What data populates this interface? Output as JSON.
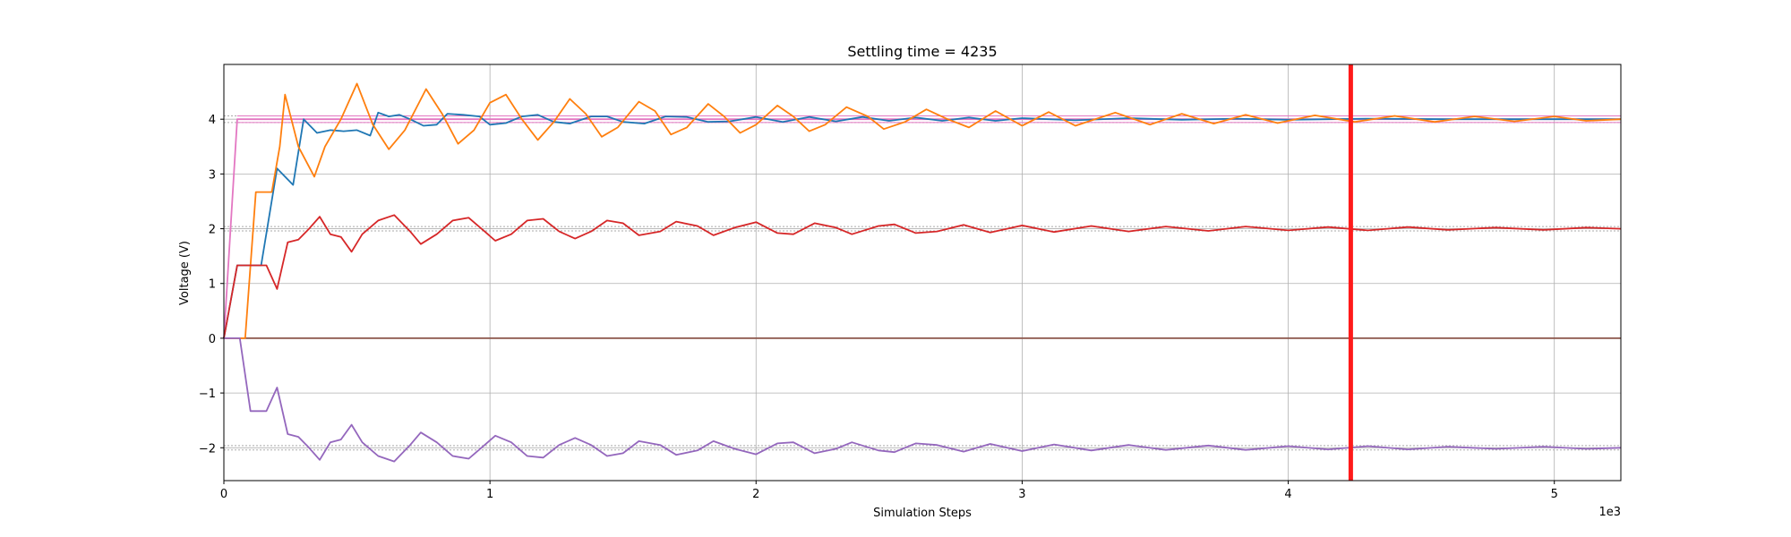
{
  "chart_data": {
    "type": "line",
    "title": "Settling time = 4235",
    "xlabel": "Simulation Steps",
    "ylabel": "Voltage (V)",
    "x_multiplier_label": "1e3",
    "xlim": [
      0,
      5.25
    ],
    "ylim": [
      -2.6,
      5.0
    ],
    "x_tick_values": [
      0,
      1,
      2,
      3,
      4,
      5
    ],
    "x_tick_labels": [
      "0",
      "1",
      "2",
      "3",
      "4",
      "5"
    ],
    "y_tick_values": [
      -2,
      -1,
      0,
      1,
      2,
      3,
      4
    ],
    "y_tick_labels": [
      "−2",
      "−1",
      "0",
      "1",
      "2",
      "3",
      "4"
    ],
    "grid": true,
    "settling_time": 4.235,
    "settling_marker_color": "#ff1a1a",
    "reference_lines": [
      {
        "y": 4.06,
        "color": "#aaaaaa",
        "style": "dotted"
      },
      {
        "y": 3.94,
        "color": "#aaaaaa",
        "style": "dotted"
      },
      {
        "y": 2.04,
        "color": "#aaaaaa",
        "style": "dotted"
      },
      {
        "y": 1.96,
        "color": "#aaaaaa",
        "style": "dotted"
      },
      {
        "y": -1.96,
        "color": "#aaaaaa",
        "style": "dotted"
      },
      {
        "y": -2.04,
        "color": "#aaaaaa",
        "style": "dotted"
      }
    ],
    "setpoint_lines": [
      {
        "y": 4.06,
        "x_start": 0.05,
        "color": "#e377c2"
      },
      {
        "y": 3.94,
        "x_start": 0.05,
        "color": "#e377c2"
      }
    ],
    "series": [
      {
        "color": "#e377c2",
        "points": [
          [
            0,
            0
          ],
          [
            0.05,
            4.0
          ],
          [
            5.25,
            4.0
          ]
        ]
      },
      {
        "color": "#8c564b",
        "points": [
          [
            0,
            0
          ],
          [
            5.25,
            0
          ]
        ]
      },
      {
        "color": "#1f77b4",
        "points": [
          [
            0,
            0
          ],
          [
            0.05,
            1.33
          ],
          [
            0.14,
            1.33
          ],
          [
            0.2,
            3.1
          ],
          [
            0.26,
            2.8
          ],
          [
            0.3,
            4.0
          ],
          [
            0.35,
            3.75
          ],
          [
            0.4,
            3.8
          ],
          [
            0.45,
            3.78
          ],
          [
            0.5,
            3.8
          ],
          [
            0.55,
            3.7
          ],
          [
            0.58,
            4.12
          ],
          [
            0.62,
            4.05
          ],
          [
            0.66,
            4.08
          ],
          [
            0.7,
            4.0
          ],
          [
            0.75,
            3.88
          ],
          [
            0.8,
            3.9
          ],
          [
            0.84,
            4.1
          ],
          [
            0.9,
            4.08
          ],
          [
            0.96,
            4.05
          ],
          [
            1.0,
            3.9
          ],
          [
            1.06,
            3.93
          ],
          [
            1.12,
            4.05
          ],
          [
            1.18,
            4.08
          ],
          [
            1.24,
            3.95
          ],
          [
            1.3,
            3.92
          ],
          [
            1.38,
            4.05
          ],
          [
            1.44,
            4.05
          ],
          [
            1.5,
            3.95
          ],
          [
            1.58,
            3.92
          ],
          [
            1.66,
            4.05
          ],
          [
            1.74,
            4.04
          ],
          [
            1.82,
            3.95
          ],
          [
            1.9,
            3.96
          ],
          [
            2.0,
            4.04
          ],
          [
            2.1,
            3.95
          ],
          [
            2.2,
            4.04
          ],
          [
            2.3,
            3.96
          ],
          [
            2.4,
            4.04
          ],
          [
            2.5,
            3.97
          ],
          [
            2.6,
            4.03
          ],
          [
            2.7,
            3.97
          ],
          [
            2.8,
            4.03
          ],
          [
            2.9,
            3.97
          ],
          [
            3.0,
            4.02
          ],
          [
            3.2,
            3.98
          ],
          [
            3.4,
            4.02
          ],
          [
            3.6,
            3.99
          ],
          [
            3.8,
            4.01
          ],
          [
            4.0,
            3.99
          ],
          [
            4.3,
            4.01
          ],
          [
            4.6,
            4.0
          ],
          [
            5.25,
            4.0
          ]
        ]
      },
      {
        "color": "#ff7f0e",
        "points": [
          [
            0,
            0
          ],
          [
            0.08,
            0
          ],
          [
            0.12,
            2.67
          ],
          [
            0.18,
            2.67
          ],
          [
            0.21,
            3.5
          ],
          [
            0.23,
            4.45
          ],
          [
            0.28,
            3.5
          ],
          [
            0.34,
            2.95
          ],
          [
            0.38,
            3.5
          ],
          [
            0.44,
            4.0
          ],
          [
            0.5,
            4.65
          ],
          [
            0.56,
            3.9
          ],
          [
            0.62,
            3.45
          ],
          [
            0.68,
            3.8
          ],
          [
            0.76,
            4.55
          ],
          [
            0.82,
            4.1
          ],
          [
            0.88,
            3.55
          ],
          [
            0.94,
            3.8
          ],
          [
            1.0,
            4.3
          ],
          [
            1.06,
            4.45
          ],
          [
            1.12,
            4.0
          ],
          [
            1.18,
            3.62
          ],
          [
            1.24,
            3.95
          ],
          [
            1.3,
            4.37
          ],
          [
            1.36,
            4.1
          ],
          [
            1.42,
            3.68
          ],
          [
            1.48,
            3.85
          ],
          [
            1.56,
            4.32
          ],
          [
            1.62,
            4.15
          ],
          [
            1.68,
            3.72
          ],
          [
            1.74,
            3.85
          ],
          [
            1.82,
            4.28
          ],
          [
            1.88,
            4.05
          ],
          [
            1.94,
            3.75
          ],
          [
            2.0,
            3.9
          ],
          [
            2.08,
            4.25
          ],
          [
            2.14,
            4.05
          ],
          [
            2.2,
            3.78
          ],
          [
            2.26,
            3.9
          ],
          [
            2.34,
            4.22
          ],
          [
            2.42,
            4.05
          ],
          [
            2.48,
            3.82
          ],
          [
            2.56,
            3.95
          ],
          [
            2.64,
            4.18
          ],
          [
            2.72,
            4.0
          ],
          [
            2.8,
            3.85
          ],
          [
            2.9,
            4.15
          ],
          [
            3.0,
            3.88
          ],
          [
            3.1,
            4.13
          ],
          [
            3.2,
            3.88
          ],
          [
            3.35,
            4.12
          ],
          [
            3.48,
            3.9
          ],
          [
            3.6,
            4.1
          ],
          [
            3.72,
            3.92
          ],
          [
            3.84,
            4.08
          ],
          [
            3.96,
            3.93
          ],
          [
            4.1,
            4.07
          ],
          [
            4.25,
            3.95
          ],
          [
            4.4,
            4.06
          ],
          [
            4.55,
            3.95
          ],
          [
            4.7,
            4.05
          ],
          [
            4.85,
            3.96
          ],
          [
            5.0,
            4.05
          ],
          [
            5.12,
            3.97
          ],
          [
            5.25,
            4.0
          ]
        ]
      },
      {
        "color": "#d62728",
        "points": [
          [
            0,
            0
          ],
          [
            0.05,
            1.33
          ],
          [
            0.16,
            1.33
          ],
          [
            0.2,
            0.9
          ],
          [
            0.24,
            1.75
          ],
          [
            0.28,
            1.8
          ],
          [
            0.32,
            2.0
          ],
          [
            0.36,
            2.22
          ],
          [
            0.4,
            1.9
          ],
          [
            0.44,
            1.85
          ],
          [
            0.48,
            1.58
          ],
          [
            0.52,
            1.9
          ],
          [
            0.58,
            2.15
          ],
          [
            0.64,
            2.25
          ],
          [
            0.7,
            1.95
          ],
          [
            0.74,
            1.72
          ],
          [
            0.8,
            1.9
          ],
          [
            0.86,
            2.15
          ],
          [
            0.92,
            2.2
          ],
          [
            0.98,
            1.95
          ],
          [
            1.02,
            1.78
          ],
          [
            1.08,
            1.9
          ],
          [
            1.14,
            2.15
          ],
          [
            1.2,
            2.18
          ],
          [
            1.26,
            1.95
          ],
          [
            1.32,
            1.82
          ],
          [
            1.38,
            1.95
          ],
          [
            1.44,
            2.15
          ],
          [
            1.5,
            2.1
          ],
          [
            1.56,
            1.88
          ],
          [
            1.64,
            1.95
          ],
          [
            1.7,
            2.13
          ],
          [
            1.78,
            2.05
          ],
          [
            1.84,
            1.88
          ],
          [
            1.92,
            2.02
          ],
          [
            2.0,
            2.12
          ],
          [
            2.08,
            1.92
          ],
          [
            2.14,
            1.9
          ],
          [
            2.22,
            2.1
          ],
          [
            2.3,
            2.02
          ],
          [
            2.36,
            1.9
          ],
          [
            2.46,
            2.05
          ],
          [
            2.52,
            2.08
          ],
          [
            2.6,
            1.92
          ],
          [
            2.68,
            1.95
          ],
          [
            2.78,
            2.07
          ],
          [
            2.88,
            1.93
          ],
          [
            3.0,
            2.06
          ],
          [
            3.12,
            1.94
          ],
          [
            3.26,
            2.05
          ],
          [
            3.4,
            1.95
          ],
          [
            3.54,
            2.04
          ],
          [
            3.7,
            1.96
          ],
          [
            3.84,
            2.04
          ],
          [
            4.0,
            1.97
          ],
          [
            4.15,
            2.03
          ],
          [
            4.3,
            1.97
          ],
          [
            4.45,
            2.03
          ],
          [
            4.6,
            1.98
          ],
          [
            4.78,
            2.02
          ],
          [
            4.96,
            1.98
          ],
          [
            5.12,
            2.02
          ],
          [
            5.25,
            2.0
          ]
        ]
      },
      {
        "color": "#9467bd",
        "points": [
          [
            0,
            0
          ],
          [
            0.06,
            0
          ],
          [
            0.1,
            -1.33
          ],
          [
            0.16,
            -1.33
          ],
          [
            0.2,
            -0.9
          ],
          [
            0.24,
            -1.75
          ],
          [
            0.28,
            -1.8
          ],
          [
            0.32,
            -2.0
          ],
          [
            0.36,
            -2.22
          ],
          [
            0.4,
            -1.9
          ],
          [
            0.44,
            -1.85
          ],
          [
            0.48,
            -1.58
          ],
          [
            0.52,
            -1.9
          ],
          [
            0.58,
            -2.15
          ],
          [
            0.64,
            -2.25
          ],
          [
            0.7,
            -1.95
          ],
          [
            0.74,
            -1.72
          ],
          [
            0.8,
            -1.9
          ],
          [
            0.86,
            -2.15
          ],
          [
            0.92,
            -2.2
          ],
          [
            0.98,
            -1.95
          ],
          [
            1.02,
            -1.78
          ],
          [
            1.08,
            -1.9
          ],
          [
            1.14,
            -2.15
          ],
          [
            1.2,
            -2.18
          ],
          [
            1.26,
            -1.95
          ],
          [
            1.32,
            -1.82
          ],
          [
            1.38,
            -1.95
          ],
          [
            1.44,
            -2.15
          ],
          [
            1.5,
            -2.1
          ],
          [
            1.56,
            -1.88
          ],
          [
            1.64,
            -1.95
          ],
          [
            1.7,
            -2.13
          ],
          [
            1.78,
            -2.05
          ],
          [
            1.84,
            -1.88
          ],
          [
            1.92,
            -2.02
          ],
          [
            2.0,
            -2.12
          ],
          [
            2.08,
            -1.92
          ],
          [
            2.14,
            -1.9
          ],
          [
            2.22,
            -2.1
          ],
          [
            2.3,
            -2.02
          ],
          [
            2.36,
            -1.9
          ],
          [
            2.46,
            -2.05
          ],
          [
            2.52,
            -2.08
          ],
          [
            2.6,
            -1.92
          ],
          [
            2.68,
            -1.95
          ],
          [
            2.78,
            -2.07
          ],
          [
            2.88,
            -1.93
          ],
          [
            3.0,
            -2.06
          ],
          [
            3.12,
            -1.94
          ],
          [
            3.26,
            -2.05
          ],
          [
            3.4,
            -1.95
          ],
          [
            3.54,
            -2.04
          ],
          [
            3.7,
            -1.96
          ],
          [
            3.84,
            -2.04
          ],
          [
            4.0,
            -1.97
          ],
          [
            4.15,
            -2.03
          ],
          [
            4.3,
            -1.97
          ],
          [
            4.45,
            -2.03
          ],
          [
            4.6,
            -1.98
          ],
          [
            4.78,
            -2.02
          ],
          [
            4.96,
            -1.98
          ],
          [
            5.12,
            -2.02
          ],
          [
            5.25,
            -2.0
          ]
        ]
      }
    ]
  }
}
